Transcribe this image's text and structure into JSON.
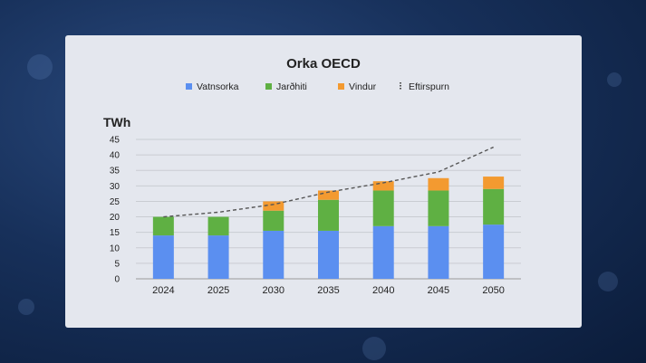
{
  "chart_data": {
    "type": "bar",
    "stacked": true,
    "title": "Orka OECD",
    "ylabel": "TWh",
    "categories": [
      "2024",
      "2025",
      "2030",
      "2035",
      "2040",
      "2045",
      "2050"
    ],
    "series": [
      {
        "name": "Vatnsorka",
        "color": "#5b8ff0",
        "values": [
          14,
          14,
          15.5,
          15.5,
          17,
          17,
          17.5
        ]
      },
      {
        "name": "Jarðhiti",
        "color": "#5fb043",
        "values": [
          6,
          6,
          6.5,
          10,
          11.5,
          11.5,
          11.5
        ]
      },
      {
        "name": "Vindur",
        "color": "#f39a30",
        "values": [
          0,
          0,
          3,
          3,
          3,
          4,
          4
        ]
      }
    ],
    "line": {
      "name": "Eftirspurn",
      "color": "#555555",
      "style": "dashed",
      "values": [
        20,
        21.5,
        24,
        28,
        31,
        34.5,
        42.5
      ]
    },
    "ylim": [
      0,
      45
    ],
    "yticks": [
      0,
      5,
      10,
      15,
      20,
      25,
      30,
      35,
      40,
      45
    ],
    "grid": true,
    "legend_position": "top"
  }
}
